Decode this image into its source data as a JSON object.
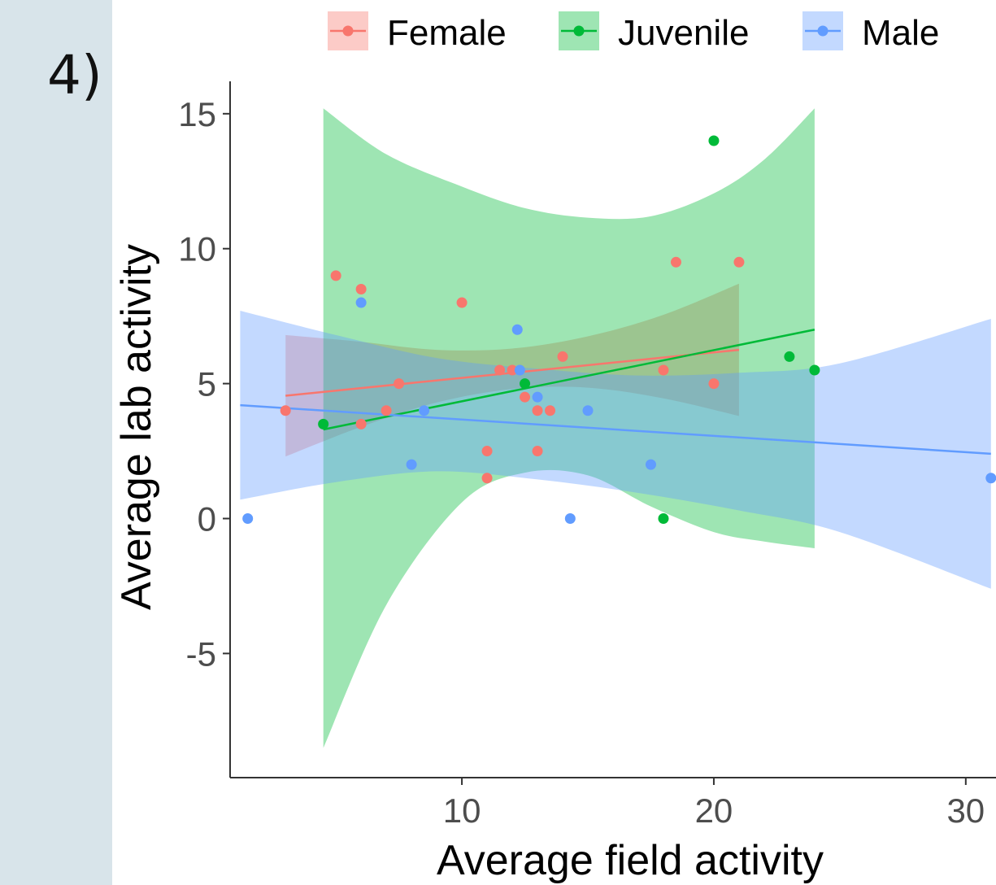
{
  "panel_label": "4)",
  "chart_data": {
    "type": "scatter",
    "xlabel": "Average field activity",
    "ylabel": "Average lab activity",
    "xlim": [
      0.8,
      31.2
    ],
    "ylim": [
      -9.6,
      16.2
    ],
    "x_ticks": [
      10,
      20,
      30
    ],
    "x_tick_labels": [
      "10",
      "20",
      "30"
    ],
    "y_ticks": [
      -5,
      0,
      5,
      10,
      15
    ],
    "y_tick_labels": [
      "-5",
      "0",
      "5",
      "10",
      "15"
    ],
    "grid": false,
    "legend_position": "top",
    "series": [
      {
        "name": "Female",
        "color": "#F8766D",
        "points": [
          [
            3,
            4
          ],
          [
            5,
            9
          ],
          [
            6,
            8.5
          ],
          [
            6,
            3.5
          ],
          [
            7,
            4
          ],
          [
            7.5,
            5
          ],
          [
            10,
            8
          ],
          [
            11,
            2.5
          ],
          [
            11,
            1.5
          ],
          [
            11.5,
            5.5
          ],
          [
            12,
            5.5
          ],
          [
            12.5,
            4.5
          ],
          [
            13,
            4
          ],
          [
            13,
            2.5
          ],
          [
            13.5,
            4
          ],
          [
            14,
            6
          ],
          [
            18,
            5.5
          ],
          [
            18.5,
            9.5
          ],
          [
            20,
            5
          ],
          [
            21,
            9.5
          ]
        ],
        "fit": {
          "x": [
            3,
            21
          ],
          "y": [
            4.55,
            6.25
          ]
        },
        "band": {
          "x": [
            3,
            6,
            9,
            12,
            15,
            18,
            21
          ],
          "lower": [
            2.3,
            3.4,
            4.3,
            4.8,
            4.85,
            4.45,
            3.8
          ],
          "upper": [
            6.8,
            6.55,
            6.25,
            6.3,
            6.75,
            7.55,
            8.7
          ]
        }
      },
      {
        "name": "Juvenile",
        "color": "#00BA38",
        "points": [
          [
            4.5,
            3.5
          ],
          [
            12.5,
            5
          ],
          [
            18,
            0
          ],
          [
            20,
            14
          ],
          [
            23,
            6
          ],
          [
            24,
            5.5
          ]
        ],
        "fit": {
          "x": [
            4.5,
            24
          ],
          "y": [
            3.3,
            7
          ]
        },
        "band": {
          "x": [
            4.5,
            7,
            10,
            12.5,
            15,
            17.5,
            20,
            22,
            24
          ],
          "lower": [
            -8.5,
            -3.2,
            0.6,
            1.7,
            1.6,
            0.45,
            -0.5,
            -0.85,
            -1.1
          ],
          "upper": [
            15.2,
            13.5,
            12.3,
            11.5,
            11.15,
            11.2,
            12.05,
            13.3,
            15.2
          ]
        }
      },
      {
        "name": "Male",
        "color": "#619CFF",
        "points": [
          [
            1.5,
            0
          ],
          [
            6,
            8
          ],
          [
            8,
            2
          ],
          [
            8.5,
            4
          ],
          [
            12.2,
            7
          ],
          [
            12.3,
            5.5
          ],
          [
            13,
            4.5
          ],
          [
            14.3,
            0
          ],
          [
            15,
            4
          ],
          [
            17.5,
            2
          ],
          [
            31,
            1.5
          ]
        ],
        "fit": {
          "x": [
            1.2,
            31
          ],
          "y": [
            4.2,
            2.4
          ]
        },
        "band": {
          "x": [
            1.2,
            5,
            9,
            13,
            17,
            21,
            25,
            31
          ],
          "lower": [
            0.7,
            1.35,
            1.75,
            1.45,
            0.95,
            0.3,
            -0.5,
            -2.6
          ],
          "upper": [
            7.7,
            6.8,
            5.95,
            5.55,
            5.3,
            5.4,
            5.75,
            7.4
          ]
        }
      }
    ]
  }
}
